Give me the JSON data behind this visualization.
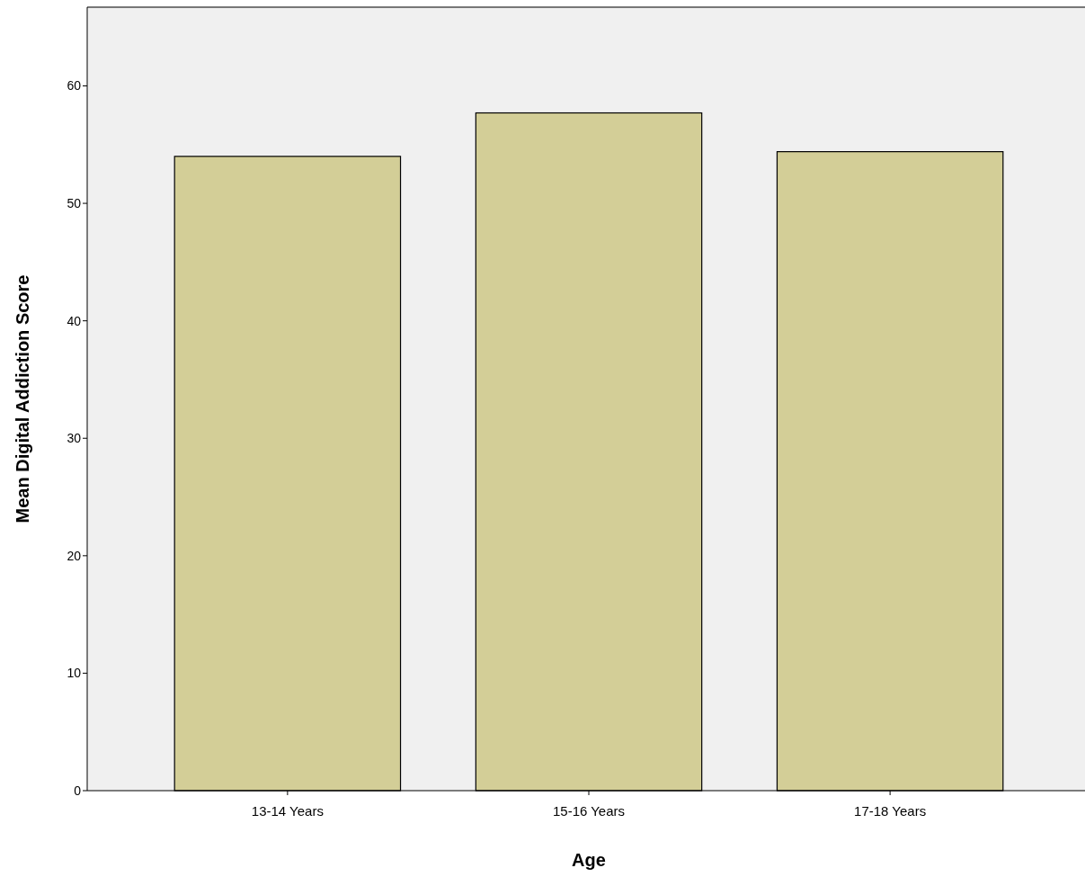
{
  "chart_data": {
    "type": "bar",
    "xlabel": "Age",
    "ylabel": "Mean Digital Addiction Score",
    "categories": [
      "13-14 Years",
      "15-16 Years",
      "17-18 Years"
    ],
    "values": [
      54.0,
      57.7,
      54.4
    ],
    "color": "#d3ce97",
    "ylim": [
      0,
      66.7
    ],
    "yticks": [
      0,
      10,
      20,
      30,
      40,
      50,
      60
    ],
    "grid": false
  }
}
